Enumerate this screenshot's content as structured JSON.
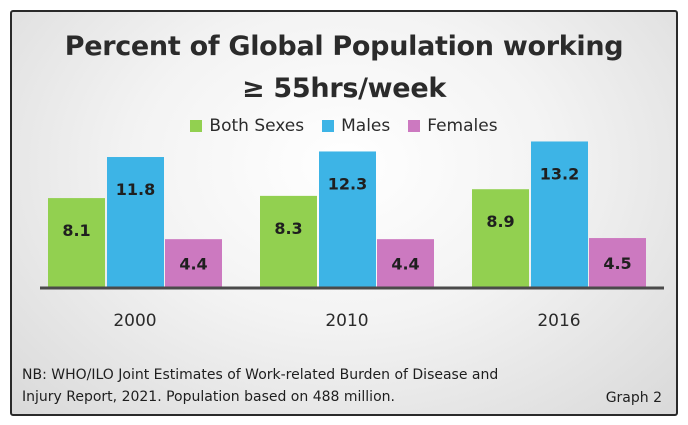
{
  "chart_data": {
    "type": "bar",
    "title_line1": "Percent of Global Population working",
    "title_line2": "≥ 55hrs/week",
    "categories": [
      "2000",
      "2010",
      "2016"
    ],
    "series": [
      {
        "name": "Both Sexes",
        "color": "#92d050",
        "values": [
          8.1,
          8.3,
          8.9
        ]
      },
      {
        "name": "Males",
        "color": "#3db4e6",
        "values": [
          11.8,
          12.3,
          13.2
        ]
      },
      {
        "name": "Females",
        "color": "#cc79c0",
        "values": [
          4.4,
          4.4,
          4.5
        ]
      }
    ],
    "value_labels": [
      [
        "8.1",
        "8.3",
        "8.9"
      ],
      [
        "11.8",
        "12.3",
        "13.2"
      ],
      [
        "4.4",
        "4.4",
        "4.5"
      ]
    ],
    "legend_position": "top-center",
    "grid": false
  },
  "note": {
    "line1": "NB: WHO/ILO Joint Estimates of Work-related Burden of Disease and",
    "line2": "Injury Report, 2021. Population based on 488 million."
  },
  "graph_label": "Graph 2"
}
